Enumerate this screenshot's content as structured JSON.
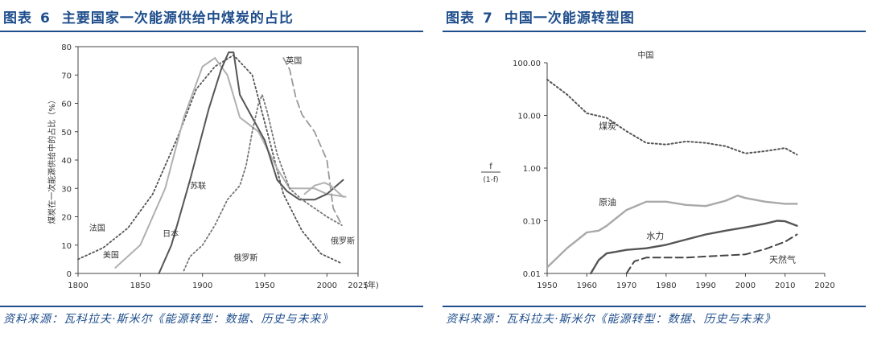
{
  "left": {
    "fig_label": "图表",
    "fig_num": "6",
    "fig_title": "主要国家一次能源供给中煤炭的占比",
    "source": "资料来源：瓦科拉夫·斯米尔《能源转型：数据、历史与未来》"
  },
  "right": {
    "fig_label": "图表",
    "fig_num": "7",
    "fig_title": "中国一次能源转型图",
    "source": "资料来源：瓦科拉夫·斯米尔《能源转型：数据、历史与未来》"
  },
  "chart_data": [
    {
      "type": "line",
      "ylabel": "煤炭在一次能源供给中的占比（%）",
      "xunit": "(年)",
      "xlim": [
        1800,
        2025
      ],
      "ylim": [
        0,
        80
      ],
      "xticks": [
        "1800",
        "1850",
        "1900",
        "1950",
        "2000",
        "2025"
      ],
      "yticks": [
        "0",
        "10",
        "20",
        "30",
        "40",
        "50",
        "60",
        "70",
        "80"
      ],
      "series": [
        {
          "name": "法国",
          "style": "dotted",
          "color": "#555555",
          "x": [
            1800,
            1820,
            1840,
            1860,
            1880,
            1895,
            1910,
            1925,
            1940,
            1955,
            1965,
            1980,
            1995,
            2012
          ],
          "y": [
            5,
            9,
            16,
            28,
            48,
            65,
            73,
            77,
            70,
            45,
            28,
            15,
            7,
            3.5
          ]
        },
        {
          "name": "美国",
          "style": "solid",
          "color": "#b0b0b0",
          "x": [
            1830,
            1850,
            1870,
            1885,
            1900,
            1910,
            1920,
            1930,
            1945,
            1960,
            1970,
            1980,
            1990,
            2000,
            2015
          ],
          "y": [
            2,
            10,
            30,
            55,
            73,
            76,
            70,
            55,
            50,
            37,
            30,
            30,
            30,
            28,
            27
          ]
        },
        {
          "name": "日本",
          "style": "solid",
          "color": "#555555",
          "x": [
            1865,
            1875,
            1890,
            1905,
            1915,
            1921,
            1925,
            1930,
            1940,
            1950,
            1960,
            1968,
            1978,
            1990,
            2000,
            2013
          ],
          "y": [
            0,
            10,
            33,
            58,
            72,
            78,
            78,
            63,
            55,
            47,
            33,
            29,
            26,
            26,
            28,
            33
          ]
        },
        {
          "name": "苏联",
          "style": "dotted",
          "color": "#777777",
          "x": [
            1885,
            1890,
            1900,
            1910,
            1920,
            1930,
            1935,
            1940,
            1945,
            1948,
            1952,
            1960,
            1970,
            1980,
            1990,
            2000,
            2012
          ],
          "y": [
            1,
            6,
            10,
            17,
            26,
            31,
            38,
            50,
            60,
            63,
            57,
            42,
            30,
            26,
            23,
            20,
            17
          ]
        },
        {
          "name": "英国",
          "style": "dashed",
          "color": "#999999",
          "x": [
            1965,
            1970,
            1975,
            1980,
            1990,
            2000,
            2005,
            2012
          ],
          "y": [
            76,
            72,
            62,
            56,
            50,
            40,
            23,
            17
          ]
        },
        {
          "name": "俄罗斯",
          "style": "solid",
          "color": "#b0b0b0",
          "x": [
            1982,
            1990,
            1998,
            2003,
            2008,
            2013
          ],
          "y": [
            28,
            31,
            32,
            31,
            29,
            27
          ]
        }
      ],
      "labels": [
        "法国",
        "美国",
        "日本",
        "俄罗斯",
        "苏联",
        "英国",
        "俄罗斯"
      ]
    },
    {
      "type": "line",
      "title": "中国",
      "ylabel_num": "f",
      "ylabel_den": "(1-f)",
      "yscale": "log",
      "xlim": [
        1950,
        2020
      ],
      "ylim": [
        0.01,
        100
      ],
      "xticks": [
        "1950",
        "1960",
        "1970",
        "1980",
        "1990",
        "2000",
        "2010",
        "2020"
      ],
      "yticks": [
        "0.01",
        "0.10",
        "1.00",
        "10.00",
        "100.00"
      ],
      "series": [
        {
          "name": "煤炭",
          "style": "dotted",
          "color": "#555555",
          "x": [
            1950,
            1955,
            1960,
            1965,
            1970,
            1975,
            1980,
            1985,
            1990,
            1995,
            2000,
            2005,
            2010,
            2013
          ],
          "y": [
            48,
            25,
            11,
            9,
            5,
            3,
            2.8,
            3.2,
            3.0,
            2.6,
            1.9,
            2.1,
            2.4,
            1.8
          ]
        },
        {
          "name": "原油",
          "style": "solid",
          "color": "#a9a9a9",
          "x": [
            1950,
            1955,
            1960,
            1963,
            1965,
            1970,
            1975,
            1980,
            1985,
            1990,
            1995,
            1998,
            2000,
            2005,
            2010,
            2013
          ],
          "y": [
            0.013,
            0.03,
            0.06,
            0.065,
            0.08,
            0.16,
            0.23,
            0.23,
            0.2,
            0.19,
            0.24,
            0.3,
            0.27,
            0.23,
            0.21,
            0.21
          ]
        },
        {
          "name": "水力",
          "style": "solid",
          "color": "#555555",
          "x": [
            1961,
            1963,
            1965,
            1970,
            1975,
            1980,
            1985,
            1990,
            1995,
            2000,
            2005,
            2008,
            2010,
            2013
          ],
          "y": [
            0.01,
            0.018,
            0.024,
            0.028,
            0.03,
            0.035,
            0.044,
            0.055,
            0.065,
            0.075,
            0.088,
            0.1,
            0.098,
            0.08
          ]
        },
        {
          "name": "天然气",
          "style": "dashed",
          "color": "#444444",
          "x": [
            1970,
            1972,
            1975,
            1980,
            1985,
            1990,
            1995,
            2000,
            2005,
            2010,
            2013
          ],
          "y": [
            0.01,
            0.017,
            0.02,
            0.02,
            0.02,
            0.021,
            0.022,
            0.023,
            0.029,
            0.04,
            0.055
          ]
        }
      ],
      "labels": [
        "煤炭",
        "原油",
        "水力",
        "天然气"
      ]
    }
  ]
}
